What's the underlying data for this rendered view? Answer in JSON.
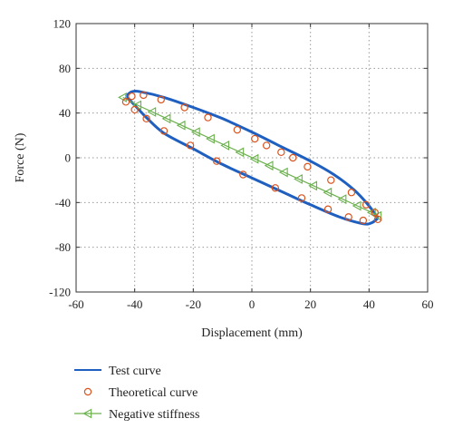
{
  "chart_data": {
    "type": "line",
    "title": "",
    "xlabel": "Displacement (mm)",
    "ylabel": "Force (N)",
    "xlim": [
      -60,
      60
    ],
    "ylim": [
      -120,
      120
    ],
    "xticks": [
      -60,
      -40,
      -20,
      0,
      20,
      40,
      60
    ],
    "yticks": [
      -120,
      -80,
      -40,
      0,
      40,
      80,
      120
    ],
    "grid": true,
    "legend_position": "below",
    "series": [
      {
        "name": "Test curve",
        "kind": "line",
        "color": "#1f5fbf",
        "upper": [
          [
            -43,
            55
          ],
          [
            -41,
            59
          ],
          [
            -38,
            59
          ],
          [
            -30,
            54
          ],
          [
            -20,
            45
          ],
          [
            -10,
            35
          ],
          [
            0,
            23
          ],
          [
            10,
            10
          ],
          [
            20,
            -3
          ],
          [
            28,
            -15
          ],
          [
            35,
            -29
          ],
          [
            40,
            -43
          ],
          [
            43,
            -54
          ]
        ],
        "lower": [
          [
            43,
            -54
          ],
          [
            41,
            -58
          ],
          [
            38,
            -59
          ],
          [
            30,
            -53
          ],
          [
            20,
            -42
          ],
          [
            10,
            -30
          ],
          [
            0,
            -18
          ],
          [
            -10,
            -6
          ],
          [
            -20,
            8
          ],
          [
            -30,
            22
          ],
          [
            -36,
            36
          ],
          [
            -40,
            47
          ],
          [
            -43,
            55
          ]
        ]
      },
      {
        "name": "Theoretical curve",
        "kind": "scatter-circle",
        "color": "#d9531e",
        "points": [
          [
            -43,
            50
          ],
          [
            -41,
            55
          ],
          [
            -37,
            56
          ],
          [
            -31,
            52
          ],
          [
            -23,
            45
          ],
          [
            -15,
            36
          ],
          [
            -5,
            25
          ],
          [
            1,
            17
          ],
          [
            5,
            11
          ],
          [
            10,
            5
          ],
          [
            14,
            0
          ],
          [
            19,
            -8
          ],
          [
            27,
            -20
          ],
          [
            34,
            -31
          ],
          [
            39,
            -42
          ],
          [
            42,
            -49
          ],
          [
            43,
            -55
          ],
          [
            38,
            -56
          ],
          [
            33,
            -53
          ],
          [
            26,
            -46
          ],
          [
            17,
            -36
          ],
          [
            8,
            -27
          ],
          [
            -3,
            -15
          ],
          [
            -12,
            -3
          ],
          [
            -21,
            11
          ],
          [
            -30,
            24
          ],
          [
            -36,
            35
          ],
          [
            -40,
            43
          ]
        ]
      },
      {
        "name": "Negative stiffness",
        "kind": "line-triangle",
        "color": "#6ab04c",
        "points": [
          [
            -44,
            54
          ],
          [
            -39,
            47
          ],
          [
            -34,
            41
          ],
          [
            -29,
            35
          ],
          [
            -24,
            29
          ],
          [
            -19,
            23
          ],
          [
            -14,
            17
          ],
          [
            -9,
            11
          ],
          [
            -4,
            5
          ],
          [
            1,
            -1
          ],
          [
            6,
            -7
          ],
          [
            11,
            -13
          ],
          [
            16,
            -19
          ],
          [
            21,
            -25
          ],
          [
            26,
            -31
          ],
          [
            31,
            -37
          ],
          [
            36,
            -43
          ],
          [
            41,
            -49
          ],
          [
            43,
            -52
          ]
        ]
      }
    ]
  }
}
